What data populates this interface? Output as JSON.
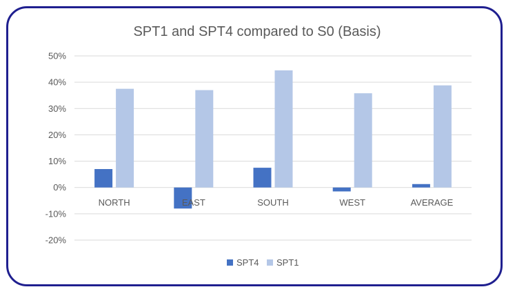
{
  "chart_data": {
    "type": "bar",
    "title": "SPT1 and SPT4  compared to S0 (Basis)",
    "xlabel": "",
    "ylabel": "",
    "categories": [
      "NORTH",
      "EAST",
      "SOUTH",
      "WEST",
      "AVERAGE"
    ],
    "series": [
      {
        "name": "SPT4",
        "color": "#4472c4",
        "values": [
          0.07,
          -0.08,
          0.075,
          -0.015,
          0.013
        ]
      },
      {
        "name": "SPT1",
        "color": "#b4c7e7",
        "values": [
          0.375,
          0.37,
          0.445,
          0.358,
          0.388
        ]
      }
    ],
    "ylim": [
      -0.2,
      0.5
    ],
    "yticks": [
      {
        "value": 0.5,
        "label": "50%"
      },
      {
        "value": 0.4,
        "label": "40%"
      },
      {
        "value": 0.3,
        "label": "30%"
      },
      {
        "value": 0.2,
        "label": "20%"
      },
      {
        "value": 0.1,
        "label": "10%"
      },
      {
        "value": 0.0,
        "label": "0%"
      },
      {
        "value": -0.1,
        "label": "-10%"
      },
      {
        "value": -0.2,
        "label": "-20%"
      }
    ],
    "grid": true,
    "legend_position": "bottom",
    "colors": {
      "frame_border": "#1f1f8f",
      "gridline": "#d9d9d9",
      "text": "#595959"
    }
  }
}
